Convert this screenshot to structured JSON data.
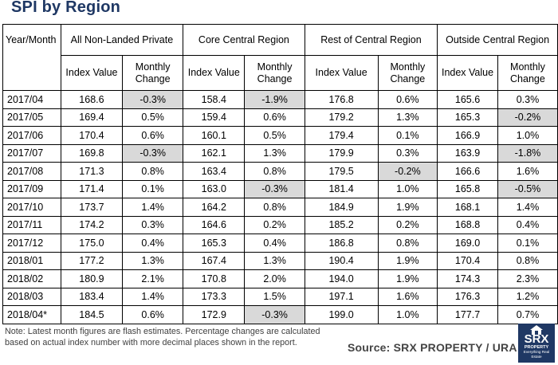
{
  "title": "SPI by Region",
  "table": {
    "col_yearmonth": "Year/Month",
    "groups": [
      "All Non-Landed Private",
      "Core Central Region",
      "Rest of Central Region",
      "Outside Central Region"
    ],
    "subheaders": {
      "index": "Index Value",
      "change_line1": "Monthly",
      "change_line2": "Change"
    },
    "rows": [
      {
        "month": "2017/04",
        "cells": [
          [
            "168.6",
            "-0.3%"
          ],
          [
            "158.4",
            "-1.9%"
          ],
          [
            "176.8",
            "0.6%"
          ],
          [
            "165.6",
            "0.3%"
          ]
        ]
      },
      {
        "month": "2017/05",
        "cells": [
          [
            "169.4",
            "0.5%"
          ],
          [
            "159.4",
            "0.6%"
          ],
          [
            "179.2",
            "1.3%"
          ],
          [
            "165.3",
            "-0.2%"
          ]
        ]
      },
      {
        "month": "2017/06",
        "cells": [
          [
            "170.4",
            "0.6%"
          ],
          [
            "160.1",
            "0.5%"
          ],
          [
            "179.4",
            "0.1%"
          ],
          [
            "166.9",
            "1.0%"
          ]
        ]
      },
      {
        "month": "2017/07",
        "cells": [
          [
            "169.8",
            "-0.3%"
          ],
          [
            "162.1",
            "1.3%"
          ],
          [
            "179.9",
            "0.3%"
          ],
          [
            "163.9",
            "-1.8%"
          ]
        ]
      },
      {
        "month": "2017/08",
        "cells": [
          [
            "171.3",
            "0.8%"
          ],
          [
            "163.4",
            "0.8%"
          ],
          [
            "179.5",
            "-0.2%"
          ],
          [
            "166.6",
            "1.6%"
          ]
        ]
      },
      {
        "month": "2017/09",
        "cells": [
          [
            "171.4",
            "0.1%"
          ],
          [
            "163.0",
            "-0.3%"
          ],
          [
            "181.4",
            "1.0%"
          ],
          [
            "165.8",
            "-0.5%"
          ]
        ]
      },
      {
        "month": "2017/10",
        "cells": [
          [
            "173.7",
            "1.4%"
          ],
          [
            "164.2",
            "0.8%"
          ],
          [
            "184.9",
            "1.9%"
          ],
          [
            "168.1",
            "1.4%"
          ]
        ]
      },
      {
        "month": "2017/11",
        "cells": [
          [
            "174.2",
            "0.3%"
          ],
          [
            "164.6",
            "0.2%"
          ],
          [
            "185.2",
            "0.2%"
          ],
          [
            "168.8",
            "0.4%"
          ]
        ]
      },
      {
        "month": "2017/12",
        "cells": [
          [
            "175.0",
            "0.4%"
          ],
          [
            "165.3",
            "0.4%"
          ],
          [
            "186.8",
            "0.8%"
          ],
          [
            "169.0",
            "0.1%"
          ]
        ]
      },
      {
        "month": "2018/01",
        "cells": [
          [
            "177.2",
            "1.3%"
          ],
          [
            "167.4",
            "1.3%"
          ],
          [
            "190.4",
            "1.9%"
          ],
          [
            "170.4",
            "0.8%"
          ]
        ]
      },
      {
        "month": "2018/02",
        "cells": [
          [
            "180.9",
            "2.1%"
          ],
          [
            "170.8",
            "2.0%"
          ],
          [
            "194.0",
            "1.9%"
          ],
          [
            "174.3",
            "2.3%"
          ]
        ]
      },
      {
        "month": "2018/03",
        "cells": [
          [
            "183.4",
            "1.4%"
          ],
          [
            "173.3",
            "1.5%"
          ],
          [
            "197.1",
            "1.6%"
          ],
          [
            "176.3",
            "1.2%"
          ]
        ]
      },
      {
        "month": "2018/04*",
        "cells": [
          [
            "184.5",
            "0.6%"
          ],
          [
            "172.9",
            "-0.3%"
          ],
          [
            "199.0",
            "1.0%"
          ],
          [
            "177.7",
            "0.7%"
          ]
        ]
      }
    ]
  },
  "note": "Note: Latest month figures are flash estimates. Percentage changes are calculated based on actual index number with more decimal places shown in the report.",
  "source": "Source:  SRX PROPERTY / URA",
  "logo": {
    "brand": "SRX",
    "sub": "PROPERTY",
    "tagline": "Everything Real Estate"
  },
  "colors": {
    "title": "#1f3864",
    "negative_highlight": "#d9d9d9",
    "logo_bg": "#1f3864"
  }
}
